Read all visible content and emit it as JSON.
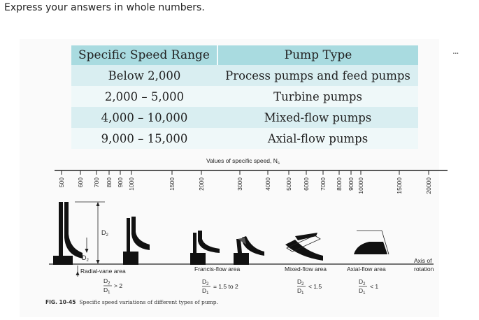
{
  "instruction": "Express your answers in whole numbers.",
  "menu": {
    "more_label": "..."
  },
  "table": {
    "headers": [
      "Specific Speed Range",
      "Pump Type"
    ],
    "rows": [
      [
        "Below 2,000",
        "Process pumps and feed pumps"
      ],
      [
        "2,000 – 5,000",
        "Turbine pumps"
      ],
      [
        "4,000 – 10,000",
        "Mixed-flow pumps"
      ],
      [
        "9,000 – 15,000",
        "Axial-flow pumps"
      ]
    ]
  },
  "figure": {
    "axis_title": "Values of specific speed, N",
    "axis_title_sub": "s",
    "ticks": [
      "500",
      "600",
      "700",
      "800",
      "900",
      "1000",
      "1500",
      "2000",
      "3000",
      "4000",
      "5000",
      "6000",
      "7000",
      "8000",
      "9000",
      "10000",
      "15000",
      "20000"
    ],
    "d2_label": "D",
    "d2_sub": "2",
    "areas": [
      {
        "name": "Radial-vane area",
        "ratio_op": "> 2"
      },
      {
        "name": "Francis-flow area",
        "ratio_op": "= 1.5 to 2"
      },
      {
        "name": "Mixed-flow area",
        "ratio_op": "< 1.5"
      },
      {
        "name": "Axial-flow area",
        "ratio_op": "< 1"
      }
    ],
    "ratio_num": "D",
    "ratio_num_sub": "2",
    "ratio_den": "D",
    "ratio_den_sub": "1",
    "axis_of_rotation_1": "Axis of",
    "axis_of_rotation_2": "rotation",
    "caption_label": "FIG. 10-45",
    "caption_text": "Specific speed variations of different types of pump."
  }
}
